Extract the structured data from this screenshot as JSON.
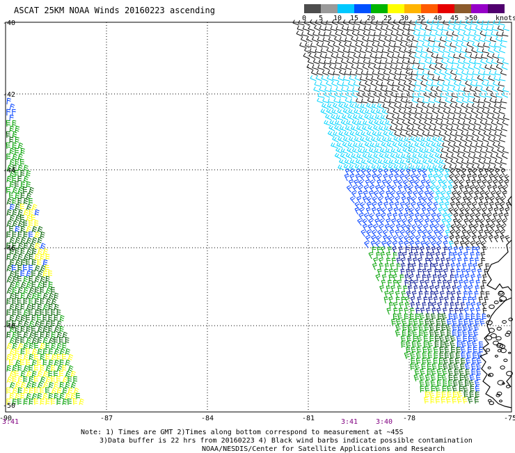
{
  "title": "ASCAT 25KM NOAA Winds 20160223 ascending",
  "legend": {
    "unit_label": "knots",
    "bins": [
      {
        "label": "0",
        "color": "#4d4d4d"
      },
      {
        "label": "5",
        "color": "#9a9a9a"
      },
      {
        "label": "10",
        "color": "#00c8ff"
      },
      {
        "label": "15",
        "color": "#0050ff"
      },
      {
        "label": "20",
        "color": "#00b400"
      },
      {
        "label": "25",
        "color": "#ffff00"
      },
      {
        "label": "30",
        "color": "#ffb400"
      },
      {
        "label": "35",
        "color": "#ff5a00"
      },
      {
        "label": "40",
        "color": "#e60000"
      },
      {
        "label": "45",
        "color": "#8b5a2b"
      },
      {
        "label": ">50",
        "color": "#9600c8"
      },
      {
        "label": "",
        "color": "#50006e"
      }
    ]
  },
  "axes": {
    "lon_labels": [
      "-90",
      "-87",
      "-84",
      "-81",
      "-78",
      "-75"
    ],
    "lat_labels": [
      "-40",
      "-42",
      "-44",
      "-46",
      "-48",
      "-50"
    ]
  },
  "times": [
    "3:41",
    "3:41",
    "3:40"
  ],
  "colors": {
    "grid": "#000000",
    "coast": "#000000",
    "time_text": "#800080"
  },
  "notes": [
    "Note: 1) Times are GMT 2)Times along bottom correspond to measurement at ~45S",
    "3)Data buffer is 22 hrs from 20160223 4) Black wind barbs indicate possible contamination",
    "NOAA/NESDIS/Center for Satellite Applications and Research"
  ]
}
